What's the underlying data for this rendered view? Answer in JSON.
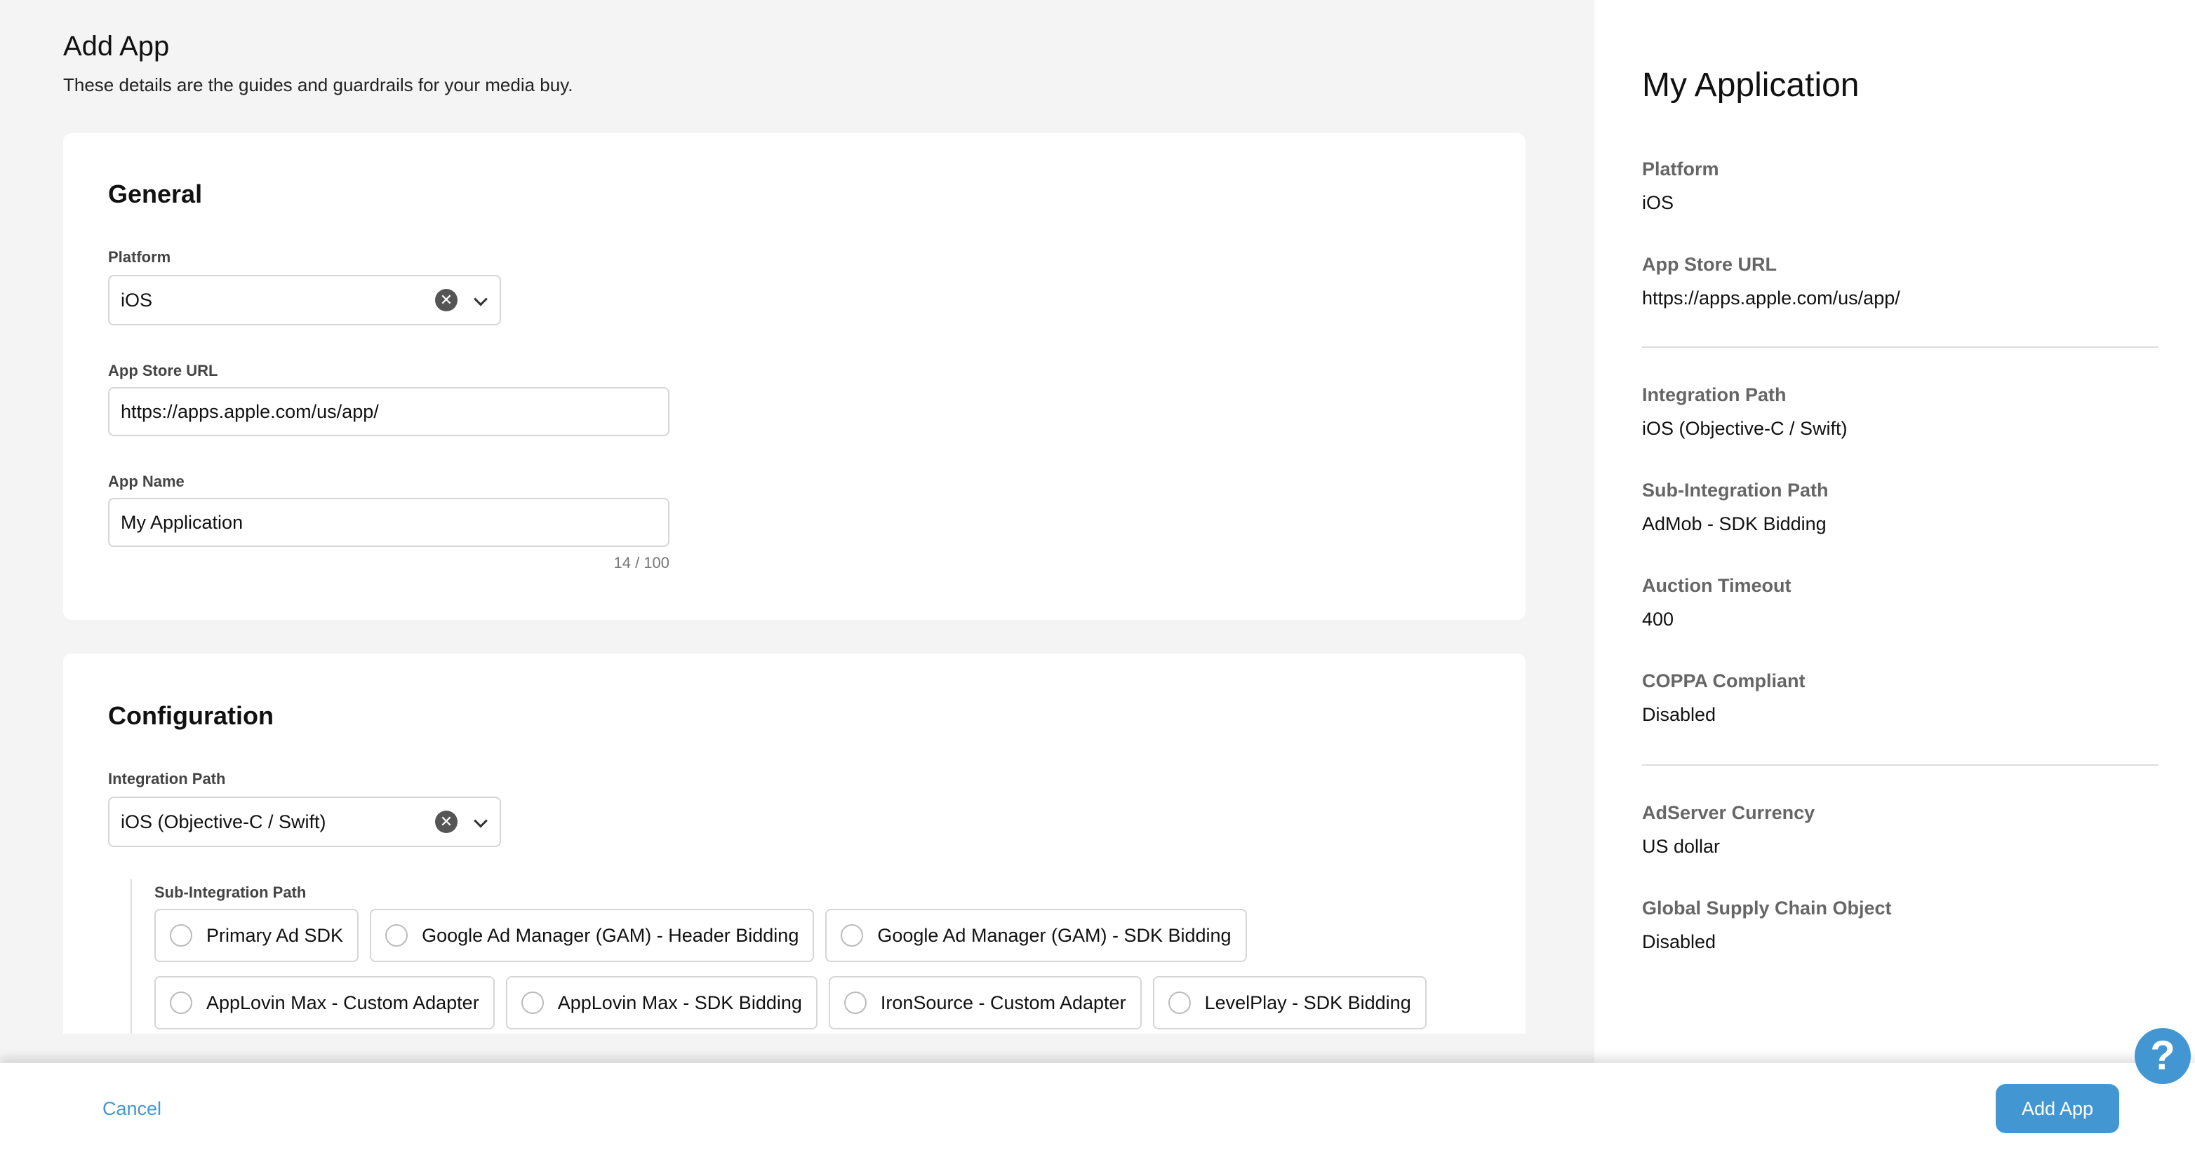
{
  "header": {
    "title": "Add App",
    "subtitle": "These details are the guides and guardrails for your media buy."
  },
  "general": {
    "title": "General",
    "platform_label": "Platform",
    "platform_value": "iOS",
    "url_label": "App Store URL",
    "url_value": "https://apps.apple.com/us/app/",
    "name_label": "App Name",
    "name_value": "My Application",
    "name_counter": "14 / 100"
  },
  "configuration": {
    "title": "Configuration",
    "integration_label": "Integration Path",
    "integration_value": "iOS (Objective-C / Swift)",
    "sub_label": "Sub-Integration Path",
    "sub_options_row1": [
      "Primary Ad SDK",
      "Google Ad Manager (GAM) - Header Bidding",
      "Google Ad Manager (GAM) - SDK Bidding"
    ],
    "sub_options_row2": [
      "AppLovin Max - Custom Adapter",
      "AppLovin Max - SDK Bidding",
      "IronSource - Custom Adapter",
      "LevelPlay - SDK Bidding"
    ]
  },
  "summary": {
    "title": "My Application",
    "fields": [
      {
        "label": "Platform",
        "value": "iOS"
      },
      {
        "label": "App Store URL",
        "value": "https://apps.apple.com/us/app/"
      },
      {
        "label": "Integration Path",
        "value": "iOS (Objective-C / Swift)"
      },
      {
        "label": "Sub-Integration Path",
        "value": "AdMob - SDK Bidding"
      },
      {
        "label": "Auction Timeout",
        "value": "400"
      },
      {
        "label": "COPPA Compliant",
        "value": "Disabled"
      },
      {
        "label": "AdServer Currency",
        "value": "US dollar"
      },
      {
        "label": "Global Supply Chain Object",
        "value": "Disabled"
      }
    ]
  },
  "footer": {
    "cancel_label": "Cancel",
    "submit_label": "Add App"
  },
  "help": {
    "icon": "question-icon",
    "glyph": "?"
  },
  "colors": {
    "accent": "#4297D3"
  }
}
